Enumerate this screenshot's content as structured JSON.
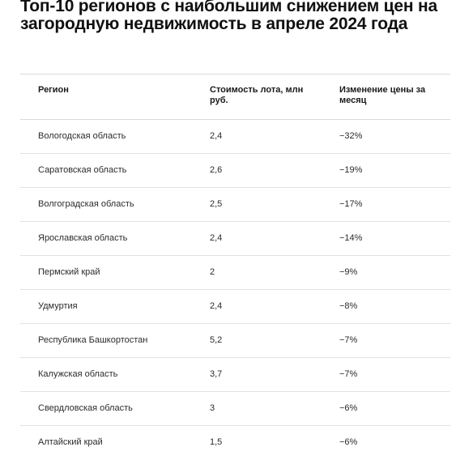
{
  "title": "Топ-10 регионов с наибольшим снижением цен на загородную недвижимость в апреле 2024 года",
  "table": {
    "headers": [
      "Регион",
      "Стоимость лота, млн руб.",
      "Изменение цены за месяц"
    ],
    "rows": [
      [
        "Вологодская область",
        "2,4",
        "−32%"
      ],
      [
        "Саратовская область",
        "2,6",
        "−19%"
      ],
      [
        "Волгоградская область",
        "2,5",
        "−17%"
      ],
      [
        "Ярославская область",
        "2,4",
        "−14%"
      ],
      [
        "Пермский край",
        "2",
        "−9%"
      ],
      [
        "Удмуртия",
        "2,4",
        "−8%"
      ],
      [
        "Республика Башкортостан",
        "5,2",
        "−7%"
      ],
      [
        "Калужская область",
        "3,7",
        "−7%"
      ],
      [
        "Свердловская область",
        "3",
        "−6%"
      ],
      [
        "Алтайский край",
        "1,5",
        "−6%"
      ]
    ]
  }
}
